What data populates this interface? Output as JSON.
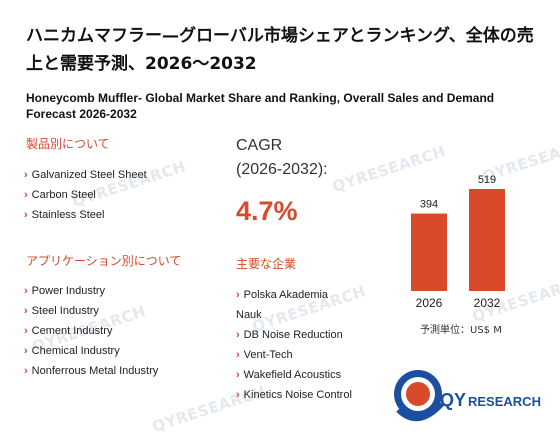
{
  "title_jp": "ハニカムマフラー—グローバル市場シェアとランキング、全体の売上と需要予測、2026～2032",
  "title_en": "Honeycomb Muffler- Global Market Share and Ranking, Overall Sales and Demand Forecast 2026-2032",
  "product_section": {
    "heading": "製品別について",
    "items": [
      "Galvanized Steel Sheet",
      "Carbon Steel",
      "Stainless Steel"
    ]
  },
  "application_section": {
    "heading": "アプリケーション別について",
    "items": [
      "Power Industry",
      "Steel Industry",
      "Cement Industry",
      "Chemical Industry",
      "Nonferrous Metal Industry"
    ]
  },
  "cagr": {
    "label": "CAGR",
    "period": "(2026-2032):",
    "value": "4.7%"
  },
  "companies_section": {
    "heading": "主要な企業",
    "items": [
      "Polska Akademia Nauk",
      "DB Noise Reduction",
      "Vent-Tech",
      "Wakefield Acoustics",
      "Kinetics Noise Control"
    ]
  },
  "chart_data": {
    "type": "bar",
    "categories": [
      "2026",
      "2032"
    ],
    "values": [
      394,
      519
    ],
    "data_labels": [
      "394",
      "519"
    ],
    "unit_label": "予測単位：US$ M",
    "bar_color": "#d9492a"
  },
  "logo": {
    "text_q": "QY",
    "text_r": "RESEARCH",
    "colors": {
      "blue": "#1d4fa1",
      "red": "#d9492a"
    }
  },
  "watermark_text": "QYRESEARCH"
}
